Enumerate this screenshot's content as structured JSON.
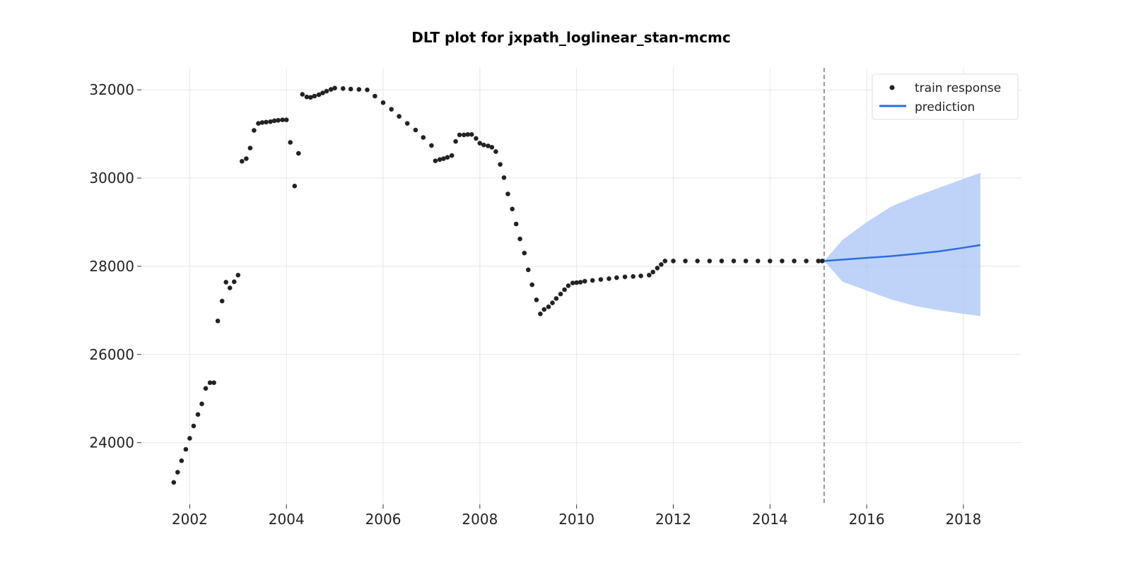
{
  "chart_data": {
    "type": "scatter",
    "title": "DLT plot for jxpath_loglinear_stan-mcmc",
    "xlabel": "",
    "ylabel": "",
    "xlim": [
      2001.0,
      2019.2
    ],
    "ylim": [
      22600,
      32500
    ],
    "x_ticks": [
      2002,
      2004,
      2006,
      2008,
      2010,
      2012,
      2014,
      2016,
      2018
    ],
    "x_tick_labels": [
      "2002",
      "2004",
      "2006",
      "2008",
      "2010",
      "2012",
      "2014",
      "2016",
      "2018"
    ],
    "y_ticks": [
      24000,
      26000,
      28000,
      30000,
      32000
    ],
    "y_tick_labels": [
      "24000",
      "26000",
      "28000",
      "30000",
      "32000"
    ],
    "grid": true,
    "legend_position": "top-right",
    "legend": [
      {
        "label": "train response",
        "symbol": "dot",
        "color": "#222222"
      },
      {
        "label": "prediction",
        "symbol": "line",
        "color": "#2a6fdb"
      }
    ],
    "forecast_start": 2015.12,
    "series": [
      {
        "name": "train response",
        "kind": "points",
        "color": "#222222",
        "x": [
          2001.67,
          2001.75,
          2001.83,
          2001.92,
          2002.0,
          2002.08,
          2002.17,
          2002.25,
          2002.33,
          2002.42,
          2002.5,
          2002.58,
          2002.67,
          2002.75,
          2002.83,
          2002.92,
          2003.0,
          2003.08,
          2003.17,
          2003.25,
          2003.33,
          2003.42,
          2003.5,
          2003.58,
          2003.67,
          2003.75,
          2003.83,
          2003.92,
          2004.0,
          2004.08,
          2004.17,
          2004.25,
          2004.33,
          2004.42,
          2004.5,
          2004.58,
          2004.67,
          2004.75,
          2004.83,
          2004.92,
          2005.0,
          2005.17,
          2005.33,
          2005.5,
          2005.67,
          2005.83,
          2006.0,
          2006.17,
          2006.33,
          2006.5,
          2006.67,
          2006.83,
          2007.0,
          2007.08,
          2007.17,
          2007.25,
          2007.33,
          2007.42,
          2007.5,
          2007.58,
          2007.67,
          2007.75,
          2007.83,
          2007.92,
          2008.0,
          2008.08,
          2008.17,
          2008.25,
          2008.33,
          2008.42,
          2008.5,
          2008.58,
          2008.67,
          2008.75,
          2008.83,
          2008.92,
          2009.0,
          2009.08,
          2009.17,
          2009.25,
          2009.33,
          2009.42,
          2009.5,
          2009.58,
          2009.67,
          2009.75,
          2009.83,
          2009.92,
          2010.0,
          2010.08,
          2010.17,
          2010.33,
          2010.5,
          2010.67,
          2010.83,
          2011.0,
          2011.17,
          2011.33,
          2011.5,
          2011.58,
          2011.67,
          2011.75,
          2011.83,
          2012.0,
          2012.25,
          2012.5,
          2012.75,
          2013.0,
          2013.25,
          2013.5,
          2013.75,
          2014.0,
          2014.25,
          2014.5,
          2014.75,
          2015.0,
          2015.08
        ],
        "y": [
          23100,
          23330,
          23590,
          23850,
          24100,
          24380,
          24640,
          24880,
          25230,
          25360,
          25360,
          26760,
          27210,
          27640,
          27510,
          27650,
          27800,
          30380,
          30440,
          30680,
          31080,
          31240,
          31260,
          31270,
          31280,
          31300,
          31310,
          31320,
          31320,
          30810,
          29820,
          30560,
          31900,
          31840,
          31830,
          31860,
          31890,
          31930,
          31970,
          32010,
          32040,
          32030,
          32020,
          32010,
          32000,
          31860,
          31710,
          31560,
          31400,
          31240,
          31090,
          30920,
          30740,
          30390,
          30420,
          30440,
          30470,
          30510,
          30830,
          30980,
          30980,
          30990,
          30990,
          30900,
          30790,
          30750,
          30730,
          30700,
          30600,
          30310,
          30010,
          29640,
          29300,
          28960,
          28620,
          28300,
          27920,
          27580,
          27240,
          26920,
          27020,
          27080,
          27170,
          27270,
          27370,
          27470,
          27560,
          27620,
          27630,
          27640,
          27660,
          27680,
          27700,
          27720,
          27740,
          27760,
          27770,
          27780,
          27800,
          27870,
          27960,
          28040,
          28120,
          28120,
          28120,
          28120,
          28120,
          28120,
          28120,
          28120,
          28120,
          28120,
          28120,
          28120,
          28120,
          28120,
          28120
        ]
      },
      {
        "name": "prediction",
        "kind": "line",
        "color": "#2a6fdb",
        "x": [
          2015.12,
          2015.5,
          2016.0,
          2016.5,
          2017.0,
          2017.5,
          2018.0,
          2018.35
        ],
        "y": [
          28120,
          28150,
          28190,
          28230,
          28280,
          28340,
          28420,
          28480
        ],
        "lower": [
          28120,
          27650,
          27450,
          27250,
          27100,
          27000,
          26920,
          26870
        ],
        "upper": [
          28120,
          28600,
          29000,
          29350,
          29580,
          29780,
          29980,
          30120
        ]
      }
    ]
  }
}
